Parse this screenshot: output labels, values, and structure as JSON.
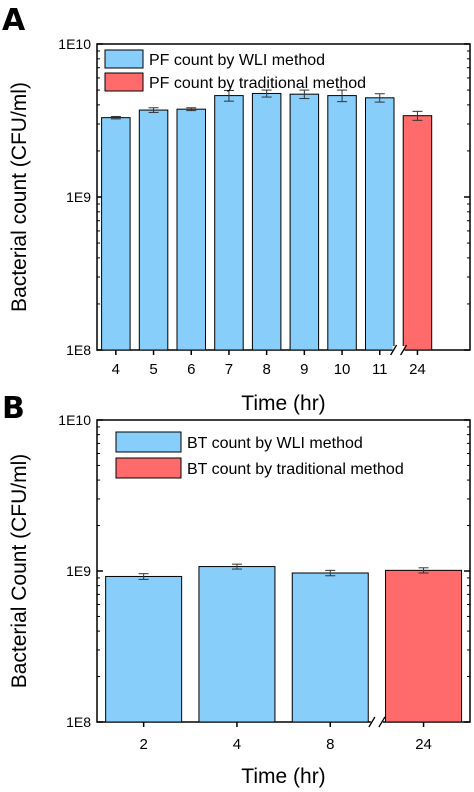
{
  "figure": {
    "colors": {
      "wli": "#87CEFA",
      "traditional": "#FF6B6B",
      "axis": "#000000"
    }
  },
  "chart_data": [
    {
      "panel": "A",
      "type": "bar",
      "scale": "log",
      "ylim": [
        100000000,
        10000000000
      ],
      "yticks": [
        {
          "value": 100000000,
          "label": "1E8"
        },
        {
          "value": 1000000000,
          "label": "1E9"
        },
        {
          "value": 10000000000,
          "label": "1E10"
        }
      ],
      "xlabel": "Time (hr)",
      "ylabel": "Bacterial count (CFU/ml)",
      "axis_break_after_index": 7,
      "legend_position": "top-left",
      "grid": false,
      "categories": [
        "4",
        "5",
        "6",
        "7",
        "8",
        "9",
        "10",
        "11",
        "24"
      ],
      "series": [
        {
          "name": "PF count by WLI method",
          "color": "#87CEFA",
          "points": [
            {
              "x": "4",
              "y": 3300000000,
              "err": 60000000
            },
            {
              "x": "5",
              "y": 3700000000,
              "err": 130000000
            },
            {
              "x": "6",
              "y": 3750000000,
              "err": 80000000
            },
            {
              "x": "7",
              "y": 4600000000,
              "err": 370000000
            },
            {
              "x": "8",
              "y": 4750000000,
              "err": 250000000
            },
            {
              "x": "9",
              "y": 4700000000,
              "err": 300000000
            },
            {
              "x": "10",
              "y": 4600000000,
              "err": 400000000
            },
            {
              "x": "11",
              "y": 4450000000,
              "err": 280000000
            }
          ]
        },
        {
          "name": "PF count by traditional method",
          "color": "#FF6B6B",
          "points": [
            {
              "x": "24",
              "y": 3400000000,
              "err": 230000000
            }
          ]
        }
      ]
    },
    {
      "panel": "B",
      "type": "bar",
      "scale": "log",
      "ylim": [
        100000000,
        10000000000
      ],
      "yticks": [
        {
          "value": 100000000,
          "label": "1E8"
        },
        {
          "value": 1000000000,
          "label": "1E9"
        },
        {
          "value": 10000000000,
          "label": "1E10"
        }
      ],
      "xlabel": "Time (hr)",
      "ylabel": "Bacterial Count (CFU/ml)",
      "axis_break_after_index": 2,
      "legend_position": "top-left",
      "grid": false,
      "categories": [
        "2",
        "4",
        "8",
        "24"
      ],
      "series": [
        {
          "name": "BT count by WLI method",
          "color": "#87CEFA",
          "points": [
            {
              "x": "2",
              "y": 920000000,
              "err": 40000000
            },
            {
              "x": "4",
              "y": 1070000000,
              "err": 40000000
            },
            {
              "x": "8",
              "y": 970000000,
              "err": 40000000
            }
          ]
        },
        {
          "name": "BT count by traditional method",
          "color": "#FF6B6B",
          "points": [
            {
              "x": "24",
              "y": 1010000000,
              "err": 40000000
            }
          ]
        }
      ]
    }
  ]
}
